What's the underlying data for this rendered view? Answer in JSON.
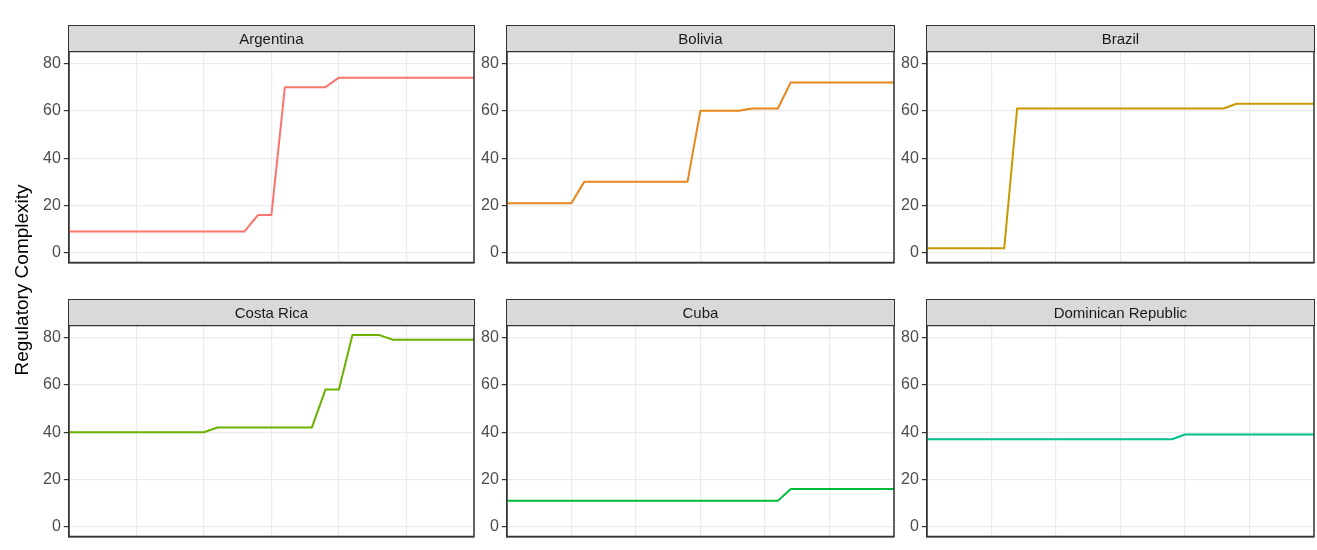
{
  "chart_data": [
    {
      "type": "line",
      "title": "Argentina",
      "ylabel": "Regulatory Complexity",
      "categories": [
        null,
        null,
        null,
        null,
        null,
        null,
        null,
        null,
        null,
        null,
        null,
        null,
        null,
        null,
        null,
        null,
        null,
        null,
        null,
        null,
        null,
        null,
        null,
        null,
        null,
        null,
        null,
        null,
        null,
        null,
        null
      ],
      "series": [
        {
          "color": "#f8766d",
          "values": [
            9,
            9,
            9,
            9,
            9,
            9,
            9,
            9,
            9,
            9,
            9,
            9,
            9,
            9,
            16,
            16,
            70,
            70,
            70,
            70,
            74,
            74,
            74,
            74,
            74,
            74,
            74,
            74,
            74,
            74,
            74
          ]
        }
      ],
      "ylim": [
        -4,
        85
      ],
      "yticks": [
        0,
        20,
        40,
        60,
        80
      ],
      "grid": true,
      "legend": false,
      "tick_labels": "y"
    },
    {
      "type": "line",
      "title": "Bolivia",
      "categories": [
        null,
        null,
        null,
        null,
        null,
        null,
        null,
        null,
        null,
        null,
        null,
        null,
        null,
        null,
        null,
        null,
        null,
        null,
        null,
        null,
        null,
        null,
        null,
        null,
        null,
        null,
        null,
        null,
        null,
        null,
        null
      ],
      "series": [
        {
          "color": "#e7861b",
          "values": [
            21,
            21,
            21,
            21,
            21,
            21,
            30,
            30,
            30,
            30,
            30,
            30,
            30,
            30,
            30,
            60,
            60,
            60,
            60,
            61,
            61,
            61,
            72,
            72,
            72,
            72,
            72,
            72,
            72,
            72,
            72
          ]
        }
      ],
      "ylim": [
        -4,
        85
      ],
      "yticks": [
        0,
        20,
        40,
        60,
        80
      ],
      "grid": true,
      "legend": false,
      "tick_labels": "y"
    },
    {
      "type": "line",
      "title": "Brazil",
      "categories": [
        null,
        null,
        null,
        null,
        null,
        null,
        null,
        null,
        null,
        null,
        null,
        null,
        null,
        null,
        null,
        null,
        null,
        null,
        null,
        null,
        null,
        null,
        null,
        null,
        null,
        null,
        null,
        null,
        null,
        null,
        null
      ],
      "series": [
        {
          "color": "#c99800",
          "values": [
            2,
            2,
            2,
            2,
            2,
            2,
            2,
            61,
            61,
            61,
            61,
            61,
            61,
            61,
            61,
            61,
            61,
            61,
            61,
            61,
            61,
            61,
            61,
            61,
            63,
            63,
            63,
            63,
            63,
            63,
            63
          ]
        }
      ],
      "ylim": [
        -4,
        85
      ],
      "yticks": [
        0,
        20,
        40,
        60,
        80
      ],
      "grid": true,
      "legend": false,
      "tick_labels": "y"
    },
    {
      "type": "line",
      "title": "Costa Rica",
      "categories": [
        null,
        null,
        null,
        null,
        null,
        null,
        null,
        null,
        null,
        null,
        null,
        null,
        null,
        null,
        null,
        null,
        null,
        null,
        null,
        null,
        null,
        null,
        null,
        null,
        null,
        null,
        null,
        null,
        null,
        null,
        null
      ],
      "series": [
        {
          "color": "#6bb100",
          "values": [
            40,
            40,
            40,
            40,
            40,
            40,
            40,
            40,
            40,
            40,
            40,
            42,
            42,
            42,
            42,
            42,
            42,
            42,
            42,
            58,
            58,
            81,
            81,
            81,
            79,
            79,
            79,
            79,
            79,
            79,
            79
          ]
        }
      ],
      "ylim": [
        -4,
        85
      ],
      "yticks": [
        0,
        20,
        40,
        60,
        80
      ],
      "grid": true,
      "legend": false,
      "tick_labels": "y"
    },
    {
      "type": "line",
      "title": "Cuba",
      "categories": [
        null,
        null,
        null,
        null,
        null,
        null,
        null,
        null,
        null,
        null,
        null,
        null,
        null,
        null,
        null,
        null,
        null,
        null,
        null,
        null,
        null,
        null,
        null,
        null,
        null,
        null,
        null,
        null,
        null,
        null,
        null
      ],
      "series": [
        {
          "color": "#00ba38",
          "values": [
            11,
            11,
            11,
            11,
            11,
            11,
            11,
            11,
            11,
            11,
            11,
            11,
            11,
            11,
            11,
            11,
            11,
            11,
            11,
            11,
            11,
            11,
            16,
            16,
            16,
            16,
            16,
            16,
            16,
            16,
            16
          ]
        }
      ],
      "ylim": [
        -4,
        85
      ],
      "yticks": [
        0,
        20,
        40,
        60,
        80
      ],
      "grid": true,
      "legend": false,
      "tick_labels": "y"
    },
    {
      "type": "line",
      "title": "Dominican Republic",
      "categories": [
        null,
        null,
        null,
        null,
        null,
        null,
        null,
        null,
        null,
        null,
        null,
        null,
        null,
        null,
        null,
        null,
        null,
        null,
        null,
        null,
        null,
        null,
        null,
        null,
        null,
        null,
        null,
        null,
        null,
        null,
        null
      ],
      "series": [
        {
          "color": "#00c08b",
          "values": [
            37,
            37,
            37,
            37,
            37,
            37,
            37,
            37,
            37,
            37,
            37,
            37,
            37,
            37,
            37,
            37,
            37,
            37,
            37,
            37,
            39,
            39,
            39,
            39,
            39,
            39,
            39,
            39,
            39,
            39,
            39
          ]
        }
      ],
      "ylim": [
        -4,
        85
      ],
      "yticks": [
        0,
        20,
        40,
        60,
        80
      ],
      "grid": true,
      "legend": false,
      "tick_labels": "y"
    }
  ]
}
